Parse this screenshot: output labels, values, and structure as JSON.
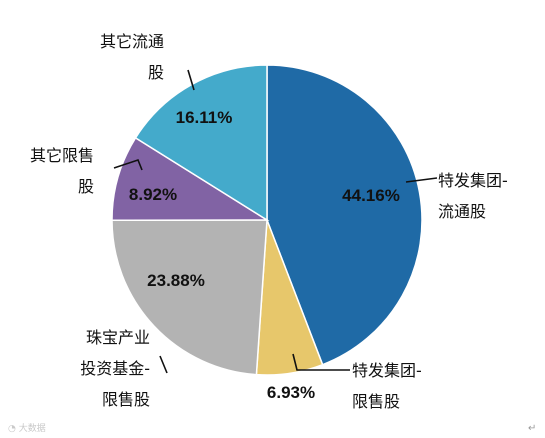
{
  "chart_data": {
    "type": "pie",
    "slices": [
      {
        "label": [
          "特发集团-",
          "流通股"
        ],
        "value": 44.16,
        "value_label": "44.16%",
        "color": "#1f6aa6"
      },
      {
        "label": [
          "特发集团-",
          "限售股"
        ],
        "value": 6.93,
        "value_label": "6.93%",
        "color": "#e7c76b"
      },
      {
        "label": [
          "珠宝产业",
          "投资基金-",
          "限售股"
        ],
        "value": 23.88,
        "value_label": "23.88%",
        "color": "#b3b3b3"
      },
      {
        "label": [
          "其它限售",
          "股"
        ],
        "value": 8.92,
        "value_label": "8.92%",
        "color": "#8163a4"
      },
      {
        "label": [
          "其它流通",
          "股"
        ],
        "value": 16.11,
        "value_label": "16.11%",
        "color": "#44aacb"
      }
    ],
    "start_angle_deg": 0,
    "direction": "clockwise"
  },
  "watermark": "大数据",
  "end_mark": "↵"
}
